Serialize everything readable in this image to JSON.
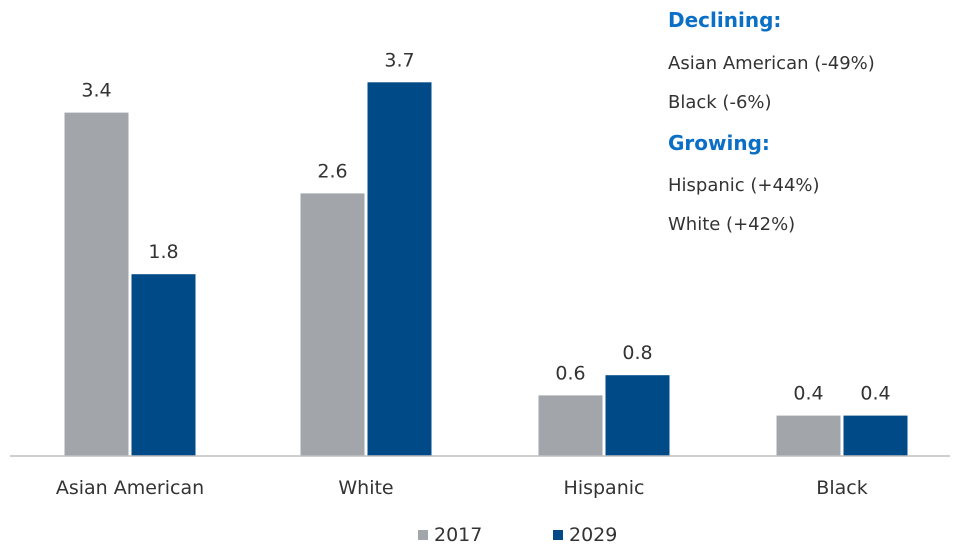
{
  "chart_data": {
    "type": "bar",
    "categories": [
      "Asian American",
      "White",
      "Hispanic",
      "Black"
    ],
    "series": [
      {
        "name": "2017",
        "values": [
          3.4,
          2.6,
          0.6,
          0.4
        ],
        "color": "#A2A6AB"
      },
      {
        "name": "2029",
        "values": [
          1.8,
          3.7,
          0.8,
          0.4
        ],
        "color": "#004A87"
      }
    ],
    "ylim": [
      0,
      4
    ],
    "grid": false,
    "legend": "bottom",
    "annotations": {
      "declining_heading": "Declining:",
      "declining_items": [
        "Asian American (-49%)",
        "Black (-6%)"
      ],
      "growing_heading": "Growing:",
      "growing_items": [
        "Hispanic (+44%)",
        "White (+42%)"
      ]
    }
  }
}
